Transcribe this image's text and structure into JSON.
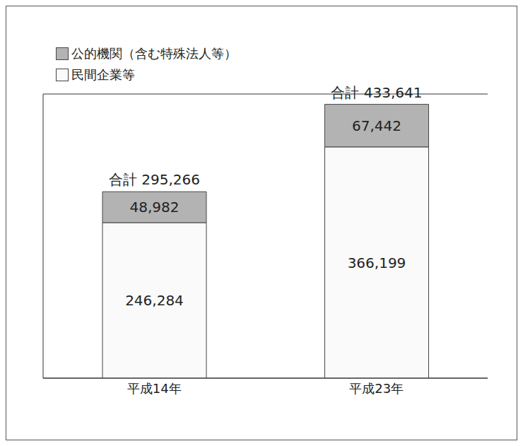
{
  "chart_data": {
    "type": "bar",
    "categories": [
      "平成14年",
      "平成23年"
    ],
    "series": [
      {
        "name": "公的機関（含む特殊法人等）",
        "color": "#b3b3b3",
        "values": [
          48982,
          67442
        ],
        "value_labels": [
          "48,982",
          "67,442"
        ]
      },
      {
        "name": "民間企業等",
        "color": "#fafafa",
        "values": [
          246284,
          366199
        ],
        "value_labels": [
          "246,284",
          "366,199"
        ]
      }
    ],
    "annotations": [
      "合計 295,266",
      "合計 433,641"
    ],
    "ylim": [
      0,
      450000
    ],
    "yticks": [
      0,
      100000,
      200000,
      300000,
      400000
    ],
    "grid": true,
    "stacked": true,
    "data_labels": true,
    "tick_labels": "x",
    "legend": "top-left"
  }
}
